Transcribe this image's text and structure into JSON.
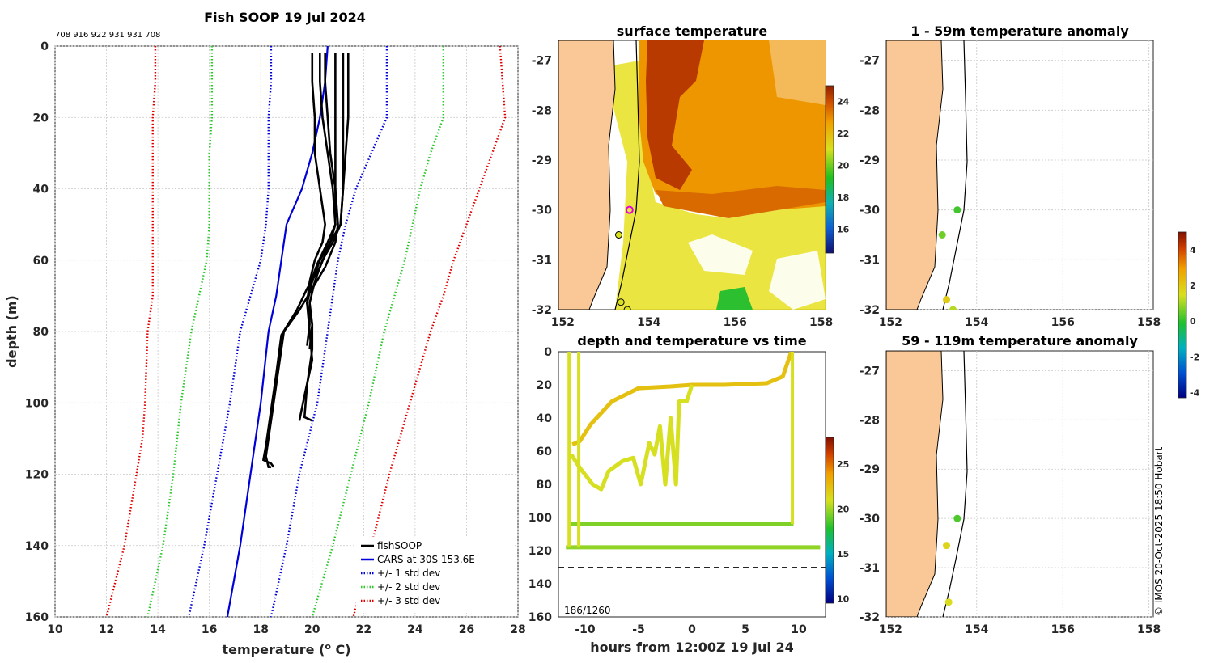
{
  "credit": "© IMOS 20-Oct-2025 18:50 Hobart",
  "chart_data": [
    {
      "type": "line",
      "id": "profile",
      "title": "Fish SOOP 19 Jul 2024",
      "subtitle": "708 916 922 931 931 708",
      "xlabel": "temperature (",
      "xlabel_sup": "o",
      "xlabel_end": " C)",
      "ylabel": "depth (m)",
      "xlim": [
        10,
        28
      ],
      "ylim": [
        0,
        160
      ],
      "y_reversed": true,
      "grid": true,
      "xticks": [
        10,
        12,
        14,
        16,
        18,
        20,
        22,
        24,
        26,
        28
      ],
      "yticks": [
        0,
        20,
        40,
        60,
        80,
        100,
        120,
        140,
        160
      ],
      "legend": {
        "position": "bottom-right",
        "entries": [
          {
            "label": "fishSOOP",
            "color": "#000000",
            "style": "solid"
          },
          {
            "label": "CARS at 30S 153.6E",
            "color": "#0000d8",
            "style": "solid"
          },
          {
            "label": "+/- 1 std dev",
            "color": "#0000d8",
            "style": "dotted"
          },
          {
            "label": "+/- 2 std dev",
            "color": "#2cc82c",
            "style": "dotted"
          },
          {
            "label": "+/- 3 std dev",
            "color": "#e00000",
            "style": "dotted"
          }
        ]
      },
      "series": [
        {
          "name": "CARS at 30S 153.6E",
          "color": "#0000d8",
          "style": "solid",
          "x": [
            20.6,
            20.5,
            20.3,
            20.0,
            19.6,
            19.0,
            18.8,
            18.6,
            18.3,
            18.0,
            17.6,
            17.2,
            16.7
          ],
          "y": [
            0,
            10,
            20,
            30,
            40,
            50,
            60,
            70,
            80,
            100,
            120,
            140,
            160
          ]
        },
        {
          "name": "-1 std dev",
          "color": "#0000d8",
          "style": "dotted",
          "x": [
            18.4,
            18.4,
            18.3,
            18.3,
            18.3,
            18.2,
            18.0,
            17.6,
            17.2,
            16.8,
            16.3,
            15.8,
            15.2
          ],
          "y": [
            0,
            10,
            20,
            30,
            40,
            50,
            60,
            70,
            80,
            100,
            120,
            140,
            160
          ]
        },
        {
          "name": "+1 std dev",
          "color": "#0000d8",
          "style": "dotted",
          "x": [
            22.9,
            22.9,
            22.9,
            22.3,
            21.7,
            21.3,
            21.0,
            20.8,
            20.6,
            20.2,
            19.5,
            19.0,
            18.4
          ],
          "y": [
            0,
            10,
            20,
            30,
            40,
            50,
            60,
            70,
            80,
            100,
            120,
            140,
            160
          ]
        },
        {
          "name": "-2 std dev",
          "color": "#2cc82c",
          "style": "dotted",
          "x": [
            16.1,
            16.1,
            16.1,
            16.0,
            16.0,
            16.0,
            15.9,
            15.6,
            15.3,
            14.9,
            14.6,
            14.2,
            13.6
          ],
          "y": [
            0,
            10,
            20,
            30,
            40,
            50,
            60,
            70,
            80,
            100,
            120,
            140,
            160
          ]
        },
        {
          "name": "+2 std dev",
          "color": "#2cc82c",
          "style": "dotted",
          "x": [
            25.1,
            25.1,
            25.1,
            24.6,
            24.2,
            23.9,
            23.6,
            23.2,
            22.8,
            22.2,
            21.5,
            20.8,
            20.0
          ],
          "y": [
            0,
            10,
            20,
            30,
            40,
            50,
            60,
            70,
            80,
            100,
            120,
            140,
            160
          ]
        },
        {
          "name": "-3 std dev",
          "color": "#e00000",
          "style": "dotted",
          "x": [
            13.9,
            13.9,
            13.8,
            13.8,
            13.8,
            13.8,
            13.8,
            13.8,
            13.6,
            13.5,
            13.4,
            12.7,
            12.0
          ],
          "y": [
            0,
            10,
            20,
            30,
            40,
            50,
            60,
            70,
            80,
            100,
            110,
            140,
            160
          ]
        },
        {
          "name": "+3 std dev",
          "color": "#e00000",
          "style": "dotted",
          "x": [
            27.3,
            27.4,
            27.5,
            27.0,
            26.5,
            26.0,
            25.5,
            25.1,
            24.6,
            23.8,
            23.0,
            22.3,
            21.6
          ],
          "y": [
            0,
            10,
            20,
            30,
            40,
            50,
            60,
            70,
            80,
            100,
            120,
            140,
            160
          ]
        },
        {
          "name": "fishSOOP 1",
          "color": "#000000",
          "style": "solid",
          "x": [
            20.5,
            20.5,
            20.6,
            20.7,
            20.9,
            21.0,
            20.9,
            20.5,
            20.0,
            19.5,
            18.9,
            18.7,
            18.5,
            18.3,
            18.2,
            18.3,
            18.4
          ],
          "y": [
            2,
            10,
            20,
            30,
            40,
            50,
            55,
            62,
            68,
            74,
            80,
            90,
            100,
            110,
            115,
            118,
            118
          ]
        },
        {
          "name": "fishSOOP 2",
          "color": "#000000",
          "style": "solid",
          "x": [
            20.3,
            20.3,
            20.4,
            20.6,
            20.8,
            20.9,
            20.7,
            20.3,
            19.8,
            19.4,
            18.8,
            18.6,
            18.4,
            18.2,
            18.1,
            18.4,
            18.5
          ],
          "y": [
            2,
            10,
            20,
            30,
            40,
            50,
            55,
            62,
            68,
            74,
            81,
            92,
            102,
            112,
            116,
            117,
            118
          ]
        },
        {
          "name": "fishSOOP 3",
          "color": "#000000",
          "style": "solid",
          "x": [
            21.2,
            21.2,
            21.2,
            21.2,
            21.2,
            21.1,
            20.8,
            20.4,
            20.1,
            19.9,
            20.0,
            20.0,
            19.8,
            19.7,
            20.0
          ],
          "y": [
            2,
            10,
            20,
            30,
            40,
            50,
            55,
            60,
            66,
            72,
            78,
            85,
            95,
            104,
            105
          ]
        },
        {
          "name": "fishSOOP 4",
          "color": "#000000",
          "style": "solid",
          "x": [
            21.4,
            21.4,
            21.4,
            21.3,
            21.2,
            21.1,
            20.7,
            20.3,
            20.0,
            19.8,
            19.9,
            20.0,
            19.7,
            19.5
          ],
          "y": [
            2,
            10,
            20,
            30,
            40,
            50,
            55,
            60,
            66,
            72,
            80,
            88,
            98,
            105
          ]
        },
        {
          "name": "fishSOOP 5",
          "color": "#000000",
          "style": "solid",
          "x": [
            20.9,
            20.9,
            20.9,
            20.9,
            20.9,
            20.9,
            20.6,
            20.2,
            19.9,
            19.8,
            19.9,
            19.8
          ],
          "y": [
            2,
            10,
            20,
            30,
            40,
            50,
            55,
            61,
            67,
            72,
            78,
            84
          ]
        },
        {
          "name": "fishSOOP 6",
          "color": "#000000",
          "style": "solid",
          "x": [
            20.0,
            20.0,
            20.1,
            20.1,
            20.3,
            20.5,
            20.4,
            20.1,
            19.9,
            19.8,
            20.0,
            19.9
          ],
          "y": [
            2,
            10,
            20,
            30,
            40,
            50,
            55,
            60,
            66,
            72,
            78,
            85
          ]
        }
      ]
    },
    {
      "type": "heatmap",
      "id": "sst",
      "title": "surface temperature",
      "xlim": [
        151.9,
        158.1
      ],
      "ylim": [
        -32,
        -26.6
      ],
      "xticks": [
        152,
        154,
        156,
        158
      ],
      "yticks": [
        -27,
        -28,
        -29,
        -30,
        -31,
        -32
      ],
      "colorbar": {
        "min": 14.5,
        "max": 25,
        "ticks": [
          16,
          18,
          20,
          22,
          24
        ]
      },
      "markers": [
        {
          "lon": 153.55,
          "lat": -30.0,
          "style": "magenta-ring"
        },
        {
          "lon": 153.3,
          "lat": -30.5,
          "style": "yellow-dot"
        },
        {
          "lon": 153.35,
          "lat": -31.85,
          "style": "yellow-dot"
        },
        {
          "lon": 153.5,
          "lat": -32.0,
          "style": "yellow-dot"
        }
      ]
    },
    {
      "type": "scatter",
      "id": "anomaly_shallow",
      "title": "1 - 59m temperature anomaly",
      "xlim": [
        151.9,
        158.1
      ],
      "ylim": [
        -32,
        -26.6
      ],
      "xticks": [
        152,
        154,
        156,
        158
      ],
      "yticks": [
        -27,
        -28,
        -29,
        -30,
        -31,
        -32
      ],
      "points": [
        {
          "lon": 153.55,
          "lat": -30.0,
          "anomaly": 0.2
        },
        {
          "lon": 153.2,
          "lat": -30.5,
          "anomaly": 0.6
        },
        {
          "lon": 153.3,
          "lat": -31.8,
          "anomaly": 2.0
        },
        {
          "lon": 153.45,
          "lat": -32.0,
          "anomaly": 1.2
        }
      ]
    },
    {
      "type": "scatter",
      "id": "anomaly_deep",
      "title": "59 - 119m temperature anomaly",
      "xlim": [
        151.9,
        158.1
      ],
      "ylim": [
        -32,
        -26.6
      ],
      "xticks": [
        152,
        154,
        156,
        158
      ],
      "yticks": [
        -27,
        -28,
        -29,
        -30,
        -31,
        -32
      ],
      "points": [
        {
          "lon": 153.55,
          "lat": -30.0,
          "anomaly": 0.3
        },
        {
          "lon": 153.3,
          "lat": -30.55,
          "anomaly": 1.8
        },
        {
          "lon": 153.35,
          "lat": -31.7,
          "anomaly": 1.6
        }
      ],
      "colorbar": {
        "min": -4.3,
        "max": 5.0,
        "ticks": [
          -4,
          -2,
          0,
          2,
          4
        ]
      }
    },
    {
      "type": "scatter",
      "id": "depth_time",
      "title": "depth and temperature vs time",
      "xlabel": "hours from 12:00Z 19 Jul 24",
      "xlim": [
        -12.5,
        12.5
      ],
      "ylim": [
        0,
        160
      ],
      "y_reversed": true,
      "xticks": [
        -10,
        -5,
        0,
        5,
        10
      ],
      "yticks": [
        0,
        20,
        40,
        60,
        80,
        100,
        120,
        140,
        160
      ],
      "reference_depth": 130,
      "corner_label": "186/1260",
      "colorbar": {
        "min": 9.5,
        "max": 28,
        "ticks": [
          10,
          15,
          20,
          25
        ]
      },
      "tracks": [
        {
          "temp": 19.5,
          "t": [
            -11.5,
            9.5
          ],
          "d": [
            104,
            104
          ]
        },
        {
          "temp": 19.8,
          "t": [
            -11.8,
            12.0
          ],
          "d": [
            118,
            118
          ]
        },
        {
          "temp": 22.5,
          "t": [
            -11.2,
            -10.5,
            -9.5,
            -7.5,
            -5,
            -2,
            0,
            3,
            7,
            8.5,
            9.3,
            9.3
          ],
          "d": [
            56,
            54,
            44,
            30,
            22,
            21,
            20,
            20,
            19,
            15,
            0,
            0
          ]
        },
        {
          "temp": 21.0,
          "t": [
            -11.3,
            -10.5,
            -9.3,
            -8.5,
            -7.8,
            -6.5,
            -5.5,
            -4.8,
            -4,
            -3.5,
            -3,
            -2.5,
            -2,
            -1.5,
            -1.2,
            -0.5,
            0
          ],
          "d": [
            62,
            70,
            80,
            83,
            72,
            66,
            64,
            80,
            55,
            62,
            45,
            80,
            40,
            80,
            30,
            30,
            20
          ]
        }
      ]
    }
  ]
}
